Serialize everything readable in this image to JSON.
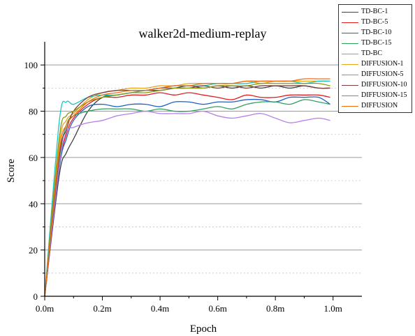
{
  "chart_data": {
    "type": "line",
    "title": "walker2d-medium-replay",
    "xlabel": "Epoch",
    "ylabel": "Score",
    "xlim": [
      0,
      1.1
    ],
    "ylim": [
      0,
      110
    ],
    "xticks": [
      0,
      0.2,
      0.4,
      0.6,
      0.8,
      1.0
    ],
    "xtick_labels": [
      "0.0m",
      "0.2m",
      "0.4m",
      "0.6m",
      "0.8m",
      "1.0m"
    ],
    "yticks": [
      0,
      20,
      40,
      60,
      80,
      100
    ],
    "ytick_labels": [
      "0",
      "20",
      "40",
      "60",
      "80",
      "100"
    ],
    "grid": "horizontal",
    "legend_position": "top-right",
    "x": [
      0,
      0.05,
      0.075,
      0.1,
      0.15,
      0.2,
      0.25,
      0.3,
      0.35,
      0.4,
      0.45,
      0.5,
      0.55,
      0.6,
      0.65,
      0.7,
      0.75,
      0.8,
      0.85,
      0.9,
      0.95,
      0.99
    ],
    "series": [
      {
        "name": "TD-BC-1",
        "color": "#404040",
        "values": [
          0,
          52,
          62,
          68,
          80,
          86,
          87,
          88,
          89,
          89,
          90,
          91,
          90,
          91,
          90,
          91,
          90,
          91,
          90,
          91,
          90,
          90
        ]
      },
      {
        "name": "TD-BC-5",
        "color": "#e41a1c",
        "values": [
          0,
          55,
          70,
          77,
          83,
          86,
          86,
          87,
          87,
          88,
          87,
          88,
          87,
          86,
          85,
          87,
          86,
          86,
          87,
          87,
          87,
          86
        ]
      },
      {
        "name": "TD-BC-10",
        "color": "#1f5fc4",
        "values": [
          0,
          55,
          68,
          76,
          82,
          83,
          82,
          83,
          83,
          82,
          84,
          84,
          83,
          84,
          84,
          85,
          85,
          84,
          86,
          86,
          86,
          83
        ]
      },
      {
        "name": "TD-BC-15",
        "color": "#2ca25f",
        "values": [
          0,
          58,
          74,
          78,
          80,
          81,
          81,
          81,
          80,
          81,
          80,
          80,
          81,
          82,
          81,
          83,
          84,
          84,
          83,
          85,
          84,
          83
        ]
      },
      {
        "name": "TD-BC",
        "color": "#b77ee8",
        "values": [
          0,
          56,
          71,
          73,
          75,
          76,
          78,
          79,
          80,
          79,
          79,
          79,
          80,
          78,
          77,
          78,
          79,
          77,
          75,
          76,
          77,
          76
        ]
      },
      {
        "name": "DIFFUSION-1",
        "color": "#e8a317",
        "values": [
          0,
          65,
          76,
          79,
          85,
          88,
          89,
          90,
          90,
          91,
          91,
          92,
          92,
          92,
          92,
          93,
          92,
          93,
          93,
          93,
          93,
          93
        ]
      },
      {
        "name": "DIFFUSION-5",
        "color": "#17c6c6",
        "values": [
          0,
          75,
          84,
          83,
          86,
          87,
          87,
          88,
          89,
          90,
          91,
          91,
          91,
          92,
          92,
          92,
          93,
          93,
          93,
          92,
          93,
          93
        ]
      },
      {
        "name": "DIFFUSION-10",
        "color": "#7b3f3f",
        "values": [
          0,
          60,
          72,
          80,
          86,
          88,
          89,
          89,
          89,
          90,
          90,
          90,
          91,
          90,
          91,
          90,
          91,
          91,
          91,
          91,
          90,
          90
        ]
      },
      {
        "name": "DIFFUSION-15",
        "color": "#8a9a10",
        "values": [
          0,
          68,
          78,
          80,
          84,
          86,
          87,
          88,
          88,
          89,
          90,
          90,
          90,
          91,
          91,
          91,
          92,
          92,
          92,
          92,
          92,
          91
        ]
      },
      {
        "name": "DIFFUSION",
        "color": "#f26b0f",
        "values": [
          0,
          62,
          74,
          78,
          84,
          87,
          88,
          89,
          89,
          90,
          91,
          91,
          92,
          92,
          92,
          93,
          93,
          93,
          93,
          94,
          94,
          94
        ]
      }
    ]
  }
}
